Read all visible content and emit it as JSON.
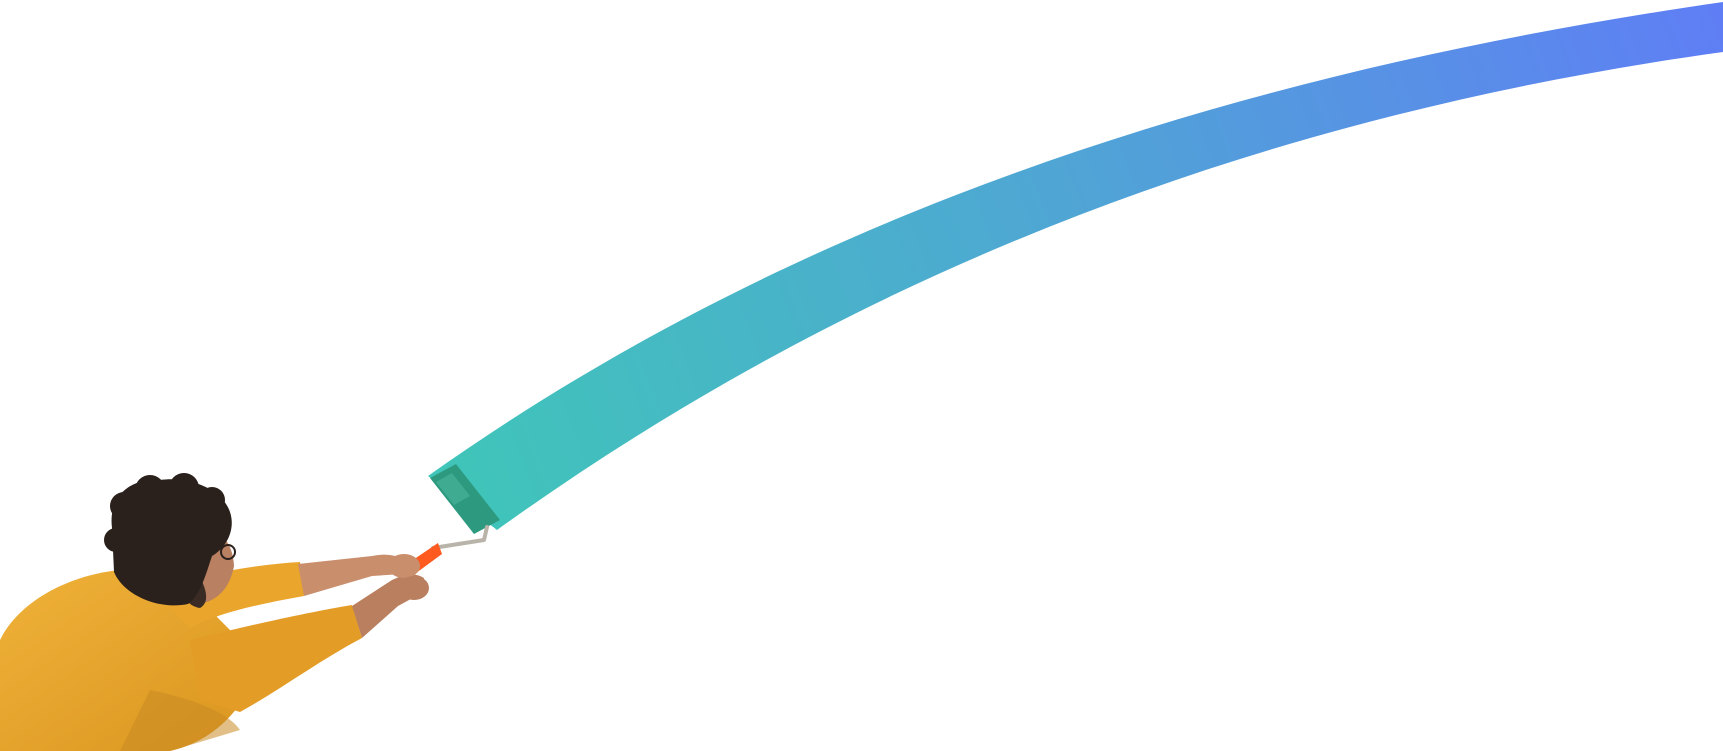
{
  "scene": {
    "subject": "person-with-paint-roller",
    "colors": {
      "background": "#ffffff",
      "stroke_start": "#3fc6b8",
      "stroke_mid": "#4fa6d4",
      "stroke_end": "#5f7ef5",
      "sweater": "#e8a330",
      "sweater_shadow": "#c98a22",
      "hair": "#2a211c",
      "skin": "#c98e6c",
      "roller_handle": "#ff5a1f",
      "roller_frame": "#b9b4aa",
      "roller_paint": "#2d9a80"
    },
    "icons": [
      "paint-roller-icon"
    ]
  }
}
